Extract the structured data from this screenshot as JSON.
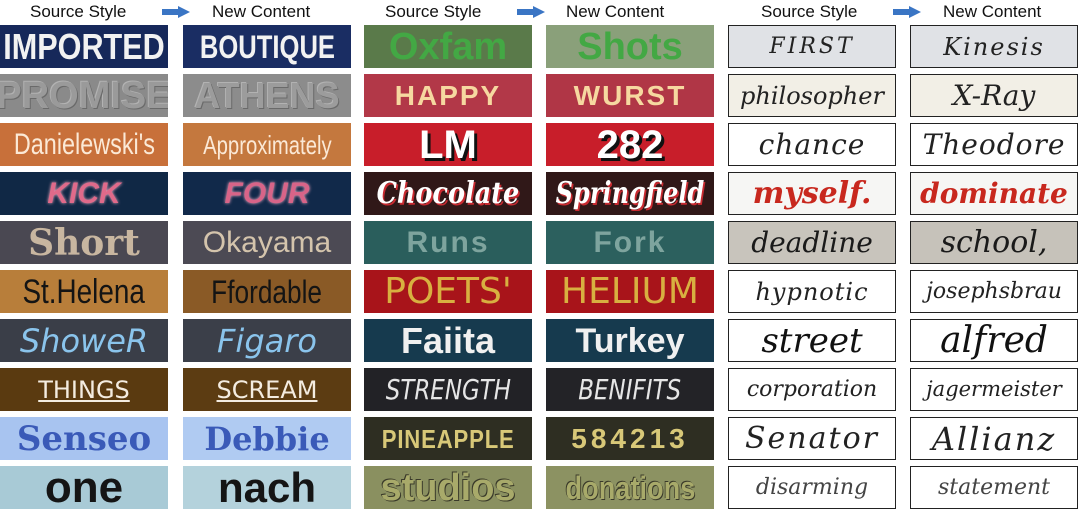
{
  "headers": {
    "source_style": "Source Style",
    "new_content": "New Content"
  },
  "columns": [
    {
      "source": [
        "IMPORTED",
        "PROMISE",
        "Danielewski's",
        "KICK",
        "Short",
        "St.Helena",
        "ShoweR",
        "THINGS",
        "Senseo",
        "one"
      ],
      "target": [
        "BOUTIQUE",
        "ATHENS",
        "Approximately",
        "FOUR",
        "Okayama",
        "Ffordable",
        "Figaro",
        "SCREAM",
        "Debbie",
        "nach"
      ]
    },
    {
      "source": [
        "Oxfam",
        "HAPPY",
        "LM",
        "Chocolate",
        "Runs",
        "POETS'",
        "Faiita",
        "STRENGTH",
        "PINEAPPLE",
        "studios"
      ],
      "target": [
        "Shots",
        "WURST",
        "282",
        "Springfield",
        "Fork",
        "HELIUM",
        "Turkey",
        "BENIFITS",
        "584213",
        "donations"
      ]
    },
    {
      "source": [
        "FIRST",
        "philosopher",
        "chance",
        "myself.",
        "deadline",
        "hypnotic",
        "street",
        "corporation",
        "Senator",
        "disarming"
      ],
      "target": [
        "Kinesis",
        "X-Ray",
        "Theodore",
        "dominate",
        "school,",
        "josephsbrau",
        "alfred",
        "jagermeister",
        "Allianz",
        "statement"
      ]
    }
  ]
}
